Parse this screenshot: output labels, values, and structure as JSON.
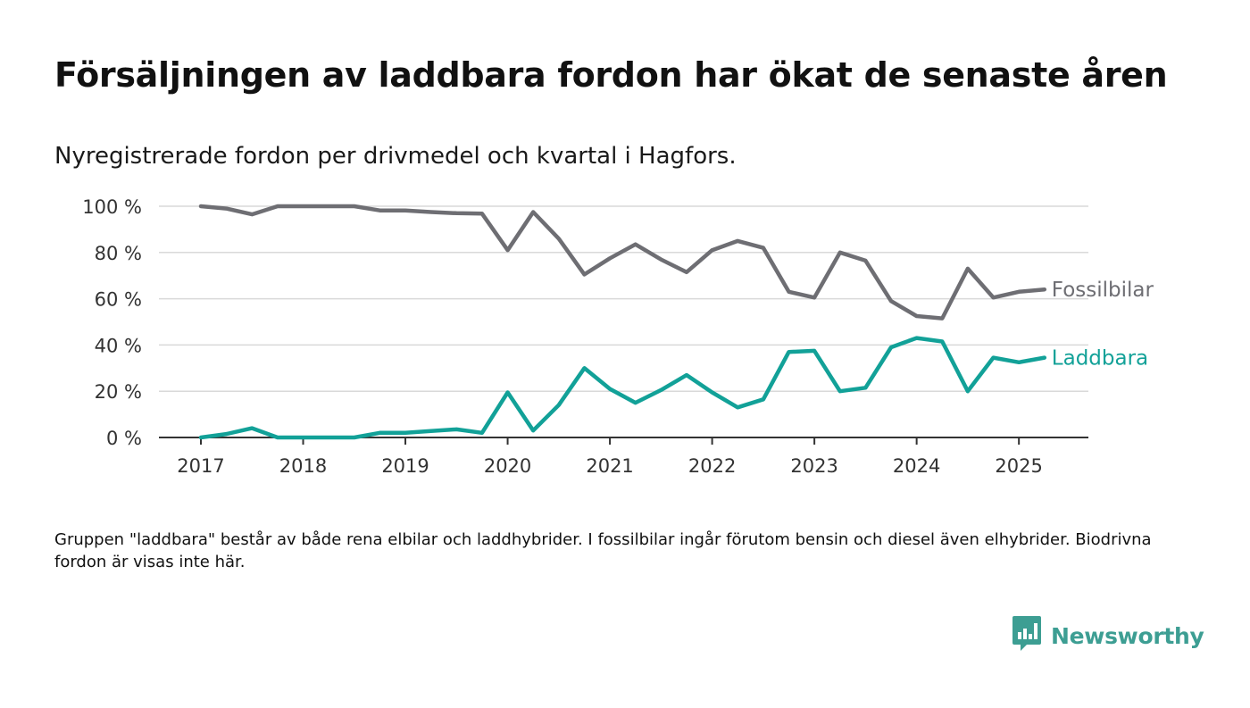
{
  "title": "Försäljningen av laddbara fordon har ökat de senaste åren",
  "subtitle": "Nyregistrerade fordon per drivmedel och kvartal i Hagfors.",
  "note": "Gruppen \"laddbara\" består av både rena elbilar och laddhybrider. I fossilbilar ingår förutom bensin och diesel även elhybrider. Biodrivna fordon är visas inte här.",
  "brand": {
    "name": "Newsworthy",
    "icon": "newsworthy-logo-icon"
  },
  "colors": {
    "fossil": "#6e6e73",
    "laddbara": "#12a198",
    "grid": "#d9d9d9",
    "axis": "#333333"
  },
  "chart_data": {
    "type": "line",
    "x": [
      "2017-Q1",
      "2017-Q2",
      "2017-Q3",
      "2017-Q4",
      "2018-Q1",
      "2018-Q2",
      "2018-Q3",
      "2018-Q4",
      "2019-Q1",
      "2019-Q2",
      "2019-Q3",
      "2019-Q4",
      "2020-Q1",
      "2020-Q2",
      "2020-Q3",
      "2020-Q4",
      "2021-Q1",
      "2021-Q2",
      "2021-Q3",
      "2021-Q4",
      "2022-Q1",
      "2022-Q2",
      "2022-Q3",
      "2022-Q4",
      "2023-Q1",
      "2023-Q2",
      "2023-Q3",
      "2023-Q4",
      "2024-Q1",
      "2024-Q2",
      "2024-Q3",
      "2024-Q4",
      "2025-Q1",
      "2025-Q2"
    ],
    "series": [
      {
        "name": "Fossilbilar",
        "color": "#6e6e73",
        "values": [
          100,
          99,
          96.5,
          100,
          100,
          100,
          100,
          98.2,
          98.2,
          97.5,
          97,
          96.8,
          81,
          97.5,
          86,
          70.5,
          77.5,
          83.5,
          77,
          71.5,
          81,
          85,
          82,
          63,
          60.5,
          80,
          76.5,
          59,
          52.5,
          51.5,
          73,
          60.5,
          63,
          64
        ]
      },
      {
        "name": "Laddbara",
        "color": "#12a198",
        "values": [
          0,
          1.5,
          4,
          0,
          0,
          0,
          0,
          2,
          2,
          2.8,
          3.5,
          2,
          19.5,
          3,
          14,
          30,
          21,
          15,
          20.5,
          27,
          19.5,
          13,
          16.5,
          37,
          37.5,
          20,
          21.5,
          39,
          43,
          41.5,
          20,
          34.5,
          32.5,
          34.5
        ]
      }
    ],
    "x_ticks": [
      "2017",
      "2018",
      "2019",
      "2020",
      "2021",
      "2022",
      "2023",
      "2024",
      "2025"
    ],
    "y_ticks": [
      "0 %",
      "20 %",
      "40 %",
      "60 %",
      "80 %",
      "100 %"
    ],
    "ylim": [
      0,
      100
    ],
    "grid": true,
    "legend": "inline-right"
  }
}
